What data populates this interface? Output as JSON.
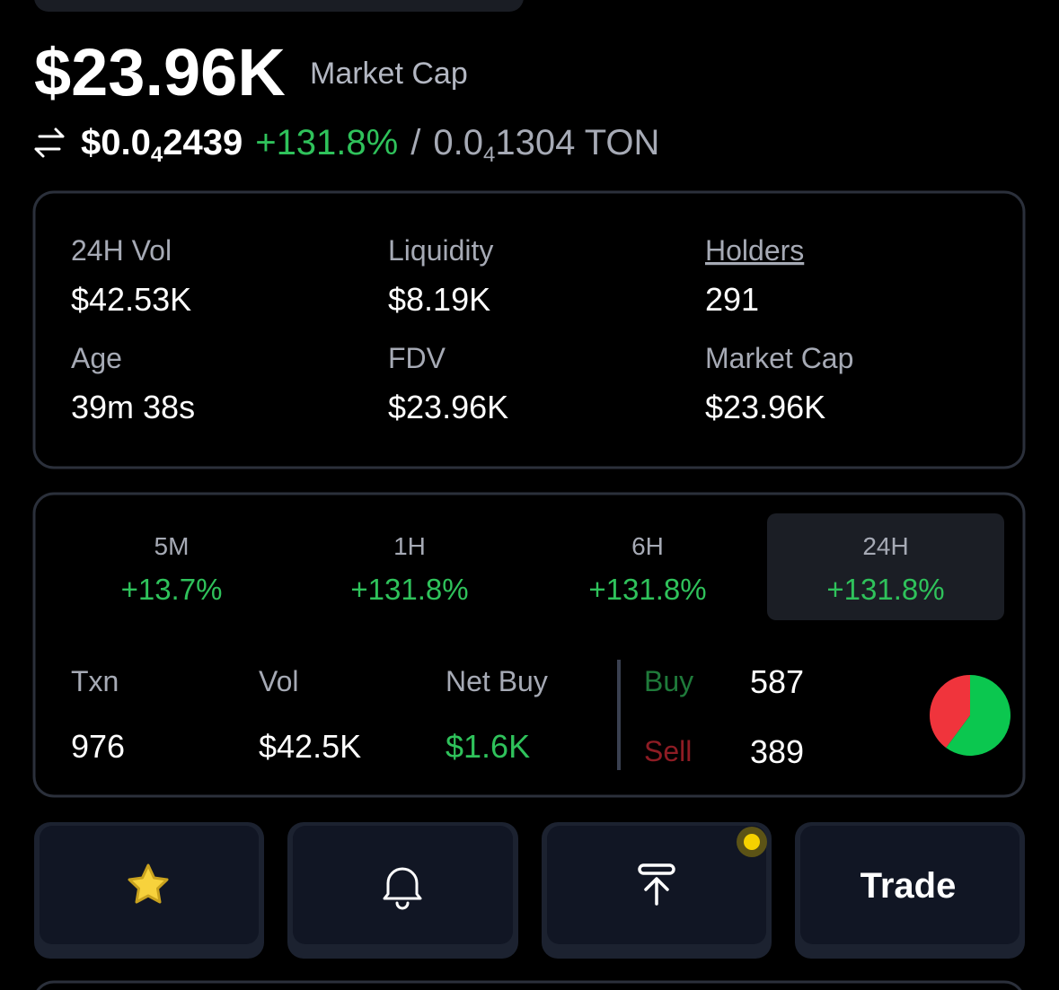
{
  "header": {
    "market_cap": "$23.96K",
    "market_cap_label": "Market Cap",
    "price": {
      "usd_prefix": "$0.0",
      "usd_zeros": "4",
      "usd_digits": "2439",
      "change": "+131.8%",
      "separator": "/",
      "ton_prefix": "0.0",
      "ton_zeros": "4",
      "ton_digits": "1304 TON"
    }
  },
  "stats": [
    {
      "label": "24H Vol",
      "value": "$42.53K"
    },
    {
      "label": "Liquidity",
      "value": "$8.19K"
    },
    {
      "label": "Holders",
      "value": "291",
      "link": true
    },
    {
      "label": "Age",
      "value": "39m 38s"
    },
    {
      "label": "FDV",
      "value": "$23.96K"
    },
    {
      "label": "Market Cap",
      "value": "$23.96K"
    }
  ],
  "timeframes": [
    {
      "label": "5M",
      "change": "+13.7%"
    },
    {
      "label": "1H",
      "change": "+131.8%"
    },
    {
      "label": "6H",
      "change": "+131.8%"
    },
    {
      "label": "24H",
      "change": "+131.8%",
      "selected": true
    }
  ],
  "txn": {
    "txn_label": "Txn",
    "txn": "976",
    "vol_label": "Vol",
    "vol": "$42.5K",
    "net_buy_label": "Net Buy",
    "net_buy": "$1.6K",
    "buy_label": "Buy",
    "buy": 587,
    "sell_label": "Sell",
    "sell": 389
  },
  "buttons": {
    "trade": "Trade"
  }
}
